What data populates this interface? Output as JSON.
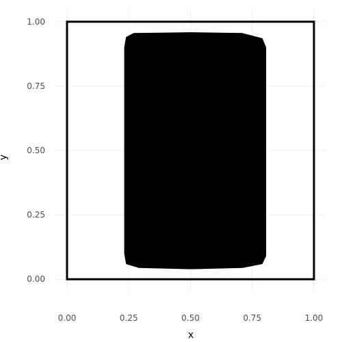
{
  "chart_data": {
    "type": "area",
    "xlabel": "x",
    "ylabel": "y",
    "xlim": [
      -0.05,
      1.05
    ],
    "ylim": [
      -0.05,
      1.05
    ],
    "x_ticks": [
      {
        "value": 0.0,
        "label": "0.00"
      },
      {
        "value": 0.25,
        "label": "0.25"
      },
      {
        "value": 0.5,
        "label": "0.50"
      },
      {
        "value": 0.75,
        "label": "0.75"
      },
      {
        "value": 1.0,
        "label": "1.00"
      }
    ],
    "y_ticks": [
      {
        "value": 0.0,
        "label": "0.00"
      },
      {
        "value": 0.25,
        "label": "0.25"
      },
      {
        "value": 0.5,
        "label": "0.50"
      },
      {
        "value": 0.75,
        "label": "0.75"
      },
      {
        "value": 1.0,
        "label": "1.00"
      }
    ],
    "grid": true,
    "legend": "none",
    "outline": {
      "x": [
        0,
        1,
        1,
        0
      ],
      "y": [
        0,
        0,
        1,
        1
      ],
      "color": "#000000"
    },
    "shape": {
      "x": [
        0.29,
        0.5,
        0.71,
        0.79,
        0.805,
        0.805,
        0.79,
        0.71,
        0.5,
        0.27,
        0.24,
        0.233,
        0.233,
        0.24,
        0.29
      ],
      "y": [
        0.045,
        0.04,
        0.045,
        0.06,
        0.09,
        0.9,
        0.935,
        0.955,
        0.958,
        0.955,
        0.94,
        0.9,
        0.1,
        0.06,
        0.045
      ],
      "color": "#000000"
    }
  }
}
